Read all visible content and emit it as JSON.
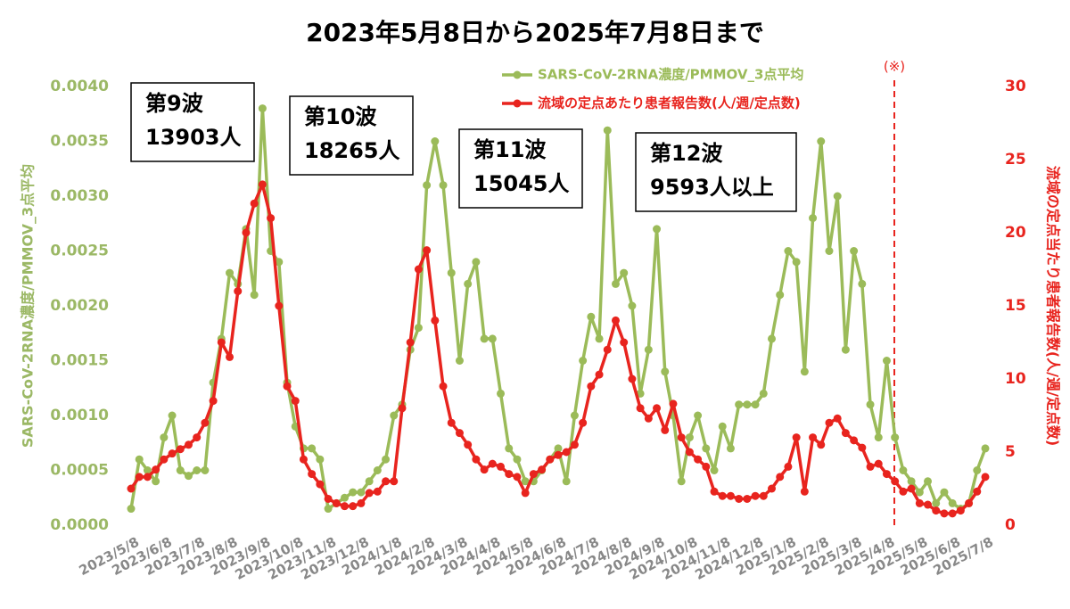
{
  "chart_data": {
    "type": "line",
    "title": "2023年5月8日から2025年7月8日まで",
    "y_label": "SARS-CoV-2RNA濃度/PMMOV_3点平均",
    "y2_label": "流域の定点当たり患者報告数(人/週/定点数)",
    "annotation": "(※)",
    "waves": [
      [
        "第9波",
        "13903人"
      ],
      [
        "第10波",
        "18265人"
      ],
      [
        "第11波",
        "15045人"
      ],
      [
        "第12波",
        "9593人以上"
      ]
    ],
    "categories": [
      "2023/5/8",
      null,
      null,
      null,
      "2023/6/8",
      null,
      null,
      null,
      "2023/7/8",
      null,
      null,
      null,
      "2023/8/8",
      null,
      null,
      null,
      "2023/9/8",
      null,
      null,
      null,
      "2023/10/8",
      null,
      null,
      null,
      "2023/11/8",
      null,
      null,
      null,
      "2023/12/8",
      null,
      null,
      null,
      "2024/1/8",
      null,
      null,
      null,
      "2024/2/8",
      null,
      null,
      null,
      "2024/3/8",
      null,
      null,
      null,
      "2024/4/8",
      null,
      null,
      null,
      "2024/5/8",
      null,
      null,
      null,
      "2024/6/8",
      null,
      null,
      null,
      "2024/7/8",
      null,
      null,
      null,
      "2024/8/8",
      null,
      null,
      null,
      "2024/9/8",
      null,
      null,
      null,
      "2024/10/8",
      null,
      null,
      null,
      "2024/11/8",
      null,
      null,
      null,
      "2024/12/8",
      null,
      null,
      null,
      "2025/1/8",
      null,
      null,
      null,
      "2025/2/8",
      null,
      null,
      null,
      "2025/3/8",
      null,
      null,
      null,
      "2025/4/8",
      null,
      null,
      null,
      "2025/5/8",
      null,
      null,
      null,
      "2025/6/8",
      null,
      null,
      null,
      "2025/7/8"
    ],
    "series": [
      {
        "name": "SARS-CoV-2RNA濃度/PMMOV_3点平均",
        "color": "#9bbb59",
        "axis": "y",
        "values": [
          0.00015,
          0.0006,
          0.0005,
          0.0004,
          0.0008,
          0.001,
          0.0005,
          0.00045,
          0.0005,
          0.0005,
          0.0013,
          0.0017,
          0.0023,
          0.0022,
          0.0027,
          0.0021,
          0.0038,
          0.0025,
          0.0024,
          0.0013,
          0.0009,
          0.0007,
          0.0007,
          0.0006,
          0.00015,
          0.0002,
          0.00025,
          0.0003,
          0.0003,
          0.0004,
          0.0005,
          0.0006,
          0.001,
          0.0011,
          0.0016,
          0.0018,
          0.0031,
          0.0035,
          0.0031,
          0.0023,
          0.0015,
          0.0022,
          0.0024,
          0.0017,
          0.0017,
          0.0012,
          0.0007,
          0.0006,
          0.0004,
          0.0004,
          0.0005,
          0.0006,
          0.0007,
          0.0004,
          0.001,
          0.0015,
          0.0019,
          0.0017,
          0.0036,
          0.0022,
          0.0023,
          0.002,
          0.0012,
          0.0016,
          0.0027,
          0.0014,
          0.001,
          0.0004,
          0.0008,
          0.001,
          0.0007,
          0.0005,
          0.0009,
          0.0007,
          0.0011,
          0.0011,
          0.0011,
          0.0012,
          0.0017,
          0.0021,
          0.0025,
          0.0024,
          0.0014,
          0.0028,
          0.0035,
          0.0025,
          0.003,
          0.0016,
          0.0025,
          0.0022,
          0.0011,
          0.0008,
          0.0015,
          0.0008,
          0.0005,
          0.0004,
          0.0003,
          0.0004,
          0.0002,
          0.0003,
          0.0002,
          0.00015,
          0.0002,
          0.0005,
          0.0007
        ]
      },
      {
        "name": "流域の定点あたり患者報告数(人/週/定点数)",
        "color": "#e8241e",
        "axis": "y2",
        "values": [
          2.5,
          3.3,
          3.3,
          3.8,
          4.5,
          4.9,
          5.2,
          5.5,
          6,
          7,
          8.5,
          12.5,
          11.5,
          16,
          20,
          22,
          23.3,
          21,
          15,
          9.5,
          8.5,
          4.5,
          3.5,
          2.8,
          1.8,
          1.5,
          1.3,
          1.3,
          1.5,
          2.2,
          2.3,
          3,
          3,
          8,
          12.5,
          17.5,
          18.8,
          14,
          9.5,
          7,
          6.3,
          5.5,
          4.5,
          3.8,
          4.2,
          4,
          3.5,
          3.3,
          2.2,
          3.5,
          3.8,
          4.5,
          4.8,
          5,
          5.5,
          7,
          9.5,
          10.3,
          12,
          14,
          12.5,
          10,
          8,
          7.3,
          8,
          6.5,
          8.3,
          6,
          5,
          4.5,
          4,
          2.3,
          2,
          2,
          1.8,
          1.8,
          2,
          2,
          2.5,
          3.3,
          4,
          6,
          2.3,
          6,
          5.5,
          7,
          7.3,
          6.3,
          5.8,
          5.3,
          4,
          4.2,
          3.5,
          3,
          2.3,
          2.5,
          1.5,
          1.4,
          1,
          0.8,
          0.8,
          1,
          1.5,
          2.3,
          3.3
        ]
      }
    ],
    "ylim": [
      0,
      0.004
    ],
    "yticks": [
      {
        "value": 0,
        "label": "0.0000"
      },
      {
        "value": 0.0005,
        "label": "0.0005"
      },
      {
        "value": 0.001,
        "label": "0.0010"
      },
      {
        "value": 0.0015,
        "label": "0.0015"
      },
      {
        "value": 0.002,
        "label": "0.0020"
      },
      {
        "value": 0.0025,
        "label": "0.0025"
      },
      {
        "value": 0.003,
        "label": "0.0030"
      },
      {
        "value": 0.0035,
        "label": "0.0035"
      },
      {
        "value": 0.004,
        "label": "0.0040"
      }
    ],
    "y2lim": [
      0,
      30
    ],
    "y2ticks": [
      0,
      5,
      10,
      15,
      20,
      25,
      30
    ],
    "grid": false
  }
}
